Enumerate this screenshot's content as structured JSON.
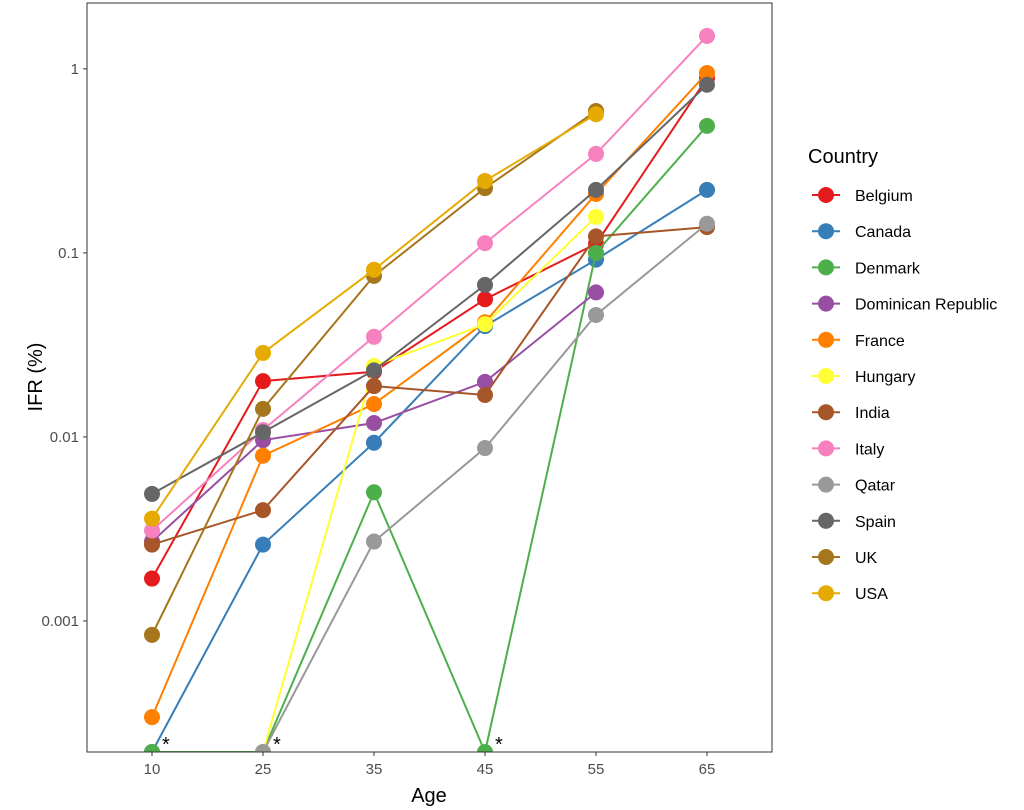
{
  "chart_data": {
    "type": "line",
    "title": "",
    "xlabel": "Age",
    "ylabel": "IFR (%)",
    "y_scale": "log10",
    "ylim": [
      0.000194,
      2.28
    ],
    "grid": false,
    "legend_title": "Country",
    "legend_position": "right",
    "categories": [
      "10",
      "25",
      "35",
      "45",
      "55",
      "65"
    ],
    "y_ticks": [
      {
        "value": 1,
        "label": "1"
      },
      {
        "value": 0.1,
        "label": "0.1"
      },
      {
        "value": 0.01,
        "label": "0.01"
      },
      {
        "value": 0.001,
        "label": "0.001"
      }
    ],
    "zero_floor_value": 0.000194,
    "annotations": [
      {
        "category": "10",
        "text": "*"
      },
      {
        "category": "25",
        "text": "*"
      },
      {
        "category": "45",
        "text": "*"
      }
    ],
    "series": [
      {
        "name": "Belgium",
        "color": "#e41a1c",
        "values": [
          0.0017,
          0.0201,
          0.0226,
          0.056,
          0.112,
          0.89
        ]
      },
      {
        "name": "Canada",
        "color": "#377eb8",
        "values": [
          0,
          0.0026,
          0.0093,
          0.04,
          0.092,
          0.22
        ]
      },
      {
        "name": "Denmark",
        "color": "#4daf4a",
        "values": [
          0,
          0,
          0.005,
          0,
          0.1,
          0.49
        ]
      },
      {
        "name": "Dominican Republic",
        "color": "#984ea3",
        "values": [
          0.0027,
          0.0096,
          0.0119,
          0.0199,
          0.061,
          null
        ]
      },
      {
        "name": "France",
        "color": "#ff7f00",
        "values": [
          0.0003,
          0.0079,
          0.0151,
          0.042,
          0.209,
          0.95
        ]
      },
      {
        "name": "Hungary",
        "color": "#ffff33",
        "values": [
          null,
          0,
          0.0243,
          0.041,
          0.157,
          null
        ]
      },
      {
        "name": "India",
        "color": "#a65628",
        "values": [
          0.0026,
          0.004,
          0.0189,
          0.0169,
          0.123,
          0.138
        ]
      },
      {
        "name": "Italy",
        "color": "#f781bf",
        "values": [
          0.0031,
          0.0109,
          0.035,
          0.113,
          0.345,
          1.51
        ]
      },
      {
        "name": "Qatar",
        "color": "#999999",
        "values": [
          null,
          0,
          0.0027,
          0.0087,
          0.046,
          0.144
        ]
      },
      {
        "name": "Spain",
        "color": "#666666",
        "values": [
          0.0049,
          0.0106,
          0.023,
          0.067,
          0.22,
          0.82
        ]
      },
      {
        "name": "UK",
        "color": "#a6761d",
        "values": [
          0.00084,
          0.0142,
          0.075,
          0.225,
          0.59,
          null
        ]
      },
      {
        "name": "USA",
        "color": "#e6ab02",
        "values": [
          0.0036,
          0.0286,
          0.081,
          0.246,
          0.567,
          null
        ]
      }
    ]
  }
}
